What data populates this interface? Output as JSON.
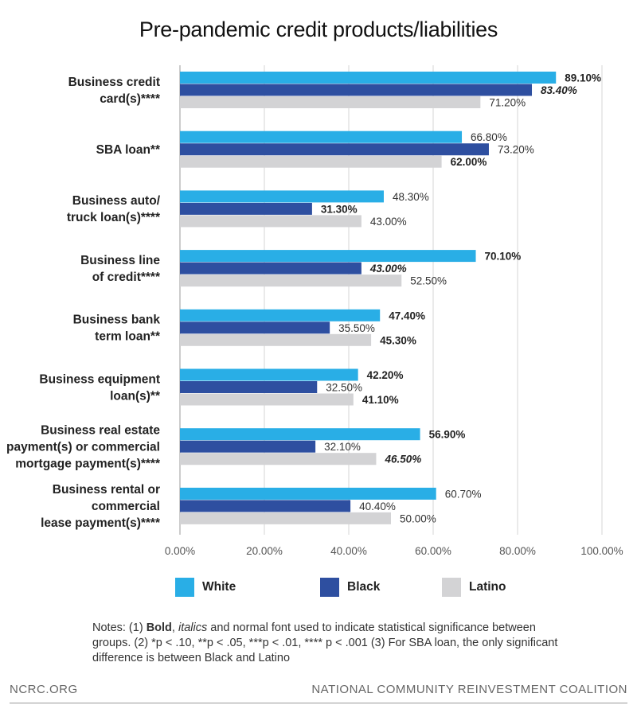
{
  "colors": {
    "white": "#29aee6",
    "black": "#2e4fa0",
    "latino": "#d3d3d5",
    "grid": "#d4d4d4"
  },
  "chart_data": {
    "type": "bar",
    "orientation": "horizontal",
    "title": "Pre-pandemic credit products/liabilities",
    "categories": [
      [
        "Business credit",
        "card(s)****"
      ],
      [
        "SBA loan**"
      ],
      [
        "Business auto/",
        "truck loan(s)****"
      ],
      [
        "Business line",
        "of credit****"
      ],
      [
        "Business bank",
        "term loan**"
      ],
      [
        "Business equipment",
        "loan(s)**"
      ],
      [
        "Business real estate",
        "payment(s) or commercial",
        "mortgage payment(s)****"
      ],
      [
        "Business rental or",
        "commercial",
        "lease payment(s)****"
      ]
    ],
    "series": [
      {
        "name": "White",
        "values": [
          89.1,
          66.8,
          48.3,
          70.1,
          47.4,
          42.2,
          56.9,
          60.7
        ],
        "labels": [
          "89.10%",
          "66.80%",
          "48.30%",
          "70.10%",
          "47.40%",
          "42.20%",
          "56.90%",
          "60.70%"
        ],
        "styles": [
          "bold",
          "normal",
          "normal",
          "bold",
          "bold",
          "bold",
          "bold",
          "normal"
        ]
      },
      {
        "name": "Black",
        "values": [
          83.4,
          73.2,
          31.3,
          43.0,
          35.5,
          32.5,
          32.1,
          40.4
        ],
        "labels": [
          "83.40%",
          "73.20%",
          "31.30%",
          "43.00%",
          "35.50%",
          "32.50%",
          "32.10%",
          "40.40%"
        ],
        "styles": [
          "bold-italic",
          "normal",
          "bold",
          "bold-italic",
          "normal",
          "normal",
          "normal",
          "normal"
        ]
      },
      {
        "name": "Latino",
        "values": [
          71.2,
          62.0,
          43.0,
          52.5,
          45.3,
          41.1,
          46.5,
          50.0
        ],
        "labels": [
          "71.20%",
          "62.00%",
          "43.00%",
          "52.50%",
          "45.30%",
          "41.10%",
          "46.50%",
          "50.00%"
        ],
        "styles": [
          "normal",
          "bold",
          "normal",
          "normal",
          "bold",
          "bold",
          "bold-italic",
          "normal"
        ]
      }
    ],
    "xlim": [
      0,
      100
    ],
    "xticks": [
      "0.00%",
      "20.00%",
      "40.00%",
      "60.00%",
      "80.00%",
      "100.00%"
    ],
    "grid": "vertical",
    "legend_position": "bottom"
  },
  "notes": {
    "prefix": "Notes: (1) ",
    "bold_word": "Bold",
    "sep": ", ",
    "italic_word": "italics",
    "rest": " and normal font used to indicate statistical significance between groups.   (2) *p < .10, **p < .05, ***p < .01, **** p < .001   (3) For SBA loan, the only significant difference is between Black and Latino"
  },
  "footer": {
    "left": "NCRC.ORG",
    "right": "NATIONAL COMMUNITY REINVESTMENT COALITION"
  }
}
